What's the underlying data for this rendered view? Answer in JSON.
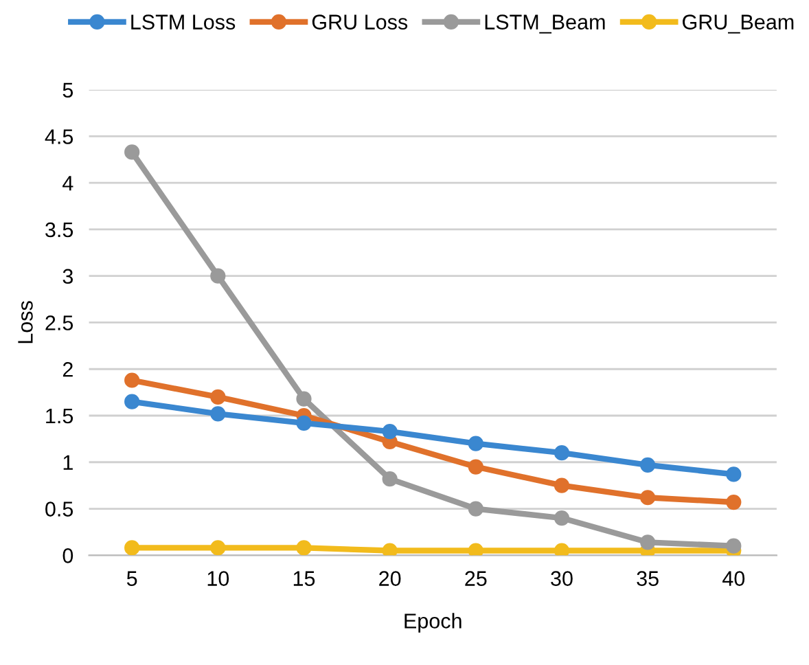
{
  "chart_data": {
    "type": "line",
    "xlabel": "Epoch",
    "ylabel": "Loss",
    "categories": [
      "5",
      "10",
      "15",
      "20",
      "25",
      "30",
      "35",
      "40"
    ],
    "series": [
      {
        "name": "LSTM Loss",
        "color": "#3a87d0",
        "values": [
          1.65,
          1.52,
          1.42,
          1.33,
          1.2,
          1.1,
          0.97,
          0.87
        ]
      },
      {
        "name": "GRU Loss",
        "color": "#e0712b",
        "values": [
          1.88,
          1.7,
          1.5,
          1.22,
          0.95,
          0.75,
          0.62,
          0.57
        ]
      },
      {
        "name": "LSTM_Beam",
        "color": "#9a9a9a",
        "values": [
          4.33,
          3.0,
          1.68,
          0.82,
          0.5,
          0.4,
          0.14,
          0.1
        ]
      },
      {
        "name": "GRU_Beam",
        "color": "#f2bb1c",
        "values": [
          0.08,
          0.08,
          0.08,
          0.05,
          0.05,
          0.05,
          0.05,
          0.05
        ]
      }
    ],
    "ylim": [
      0,
      5
    ],
    "yticks": [
      0,
      0.5,
      1,
      1.5,
      2,
      2.5,
      3,
      3.5,
      4,
      4.5,
      5
    ],
    "grid": "y",
    "legend": "top",
    "marker": "circle",
    "line_style": "solid"
  }
}
